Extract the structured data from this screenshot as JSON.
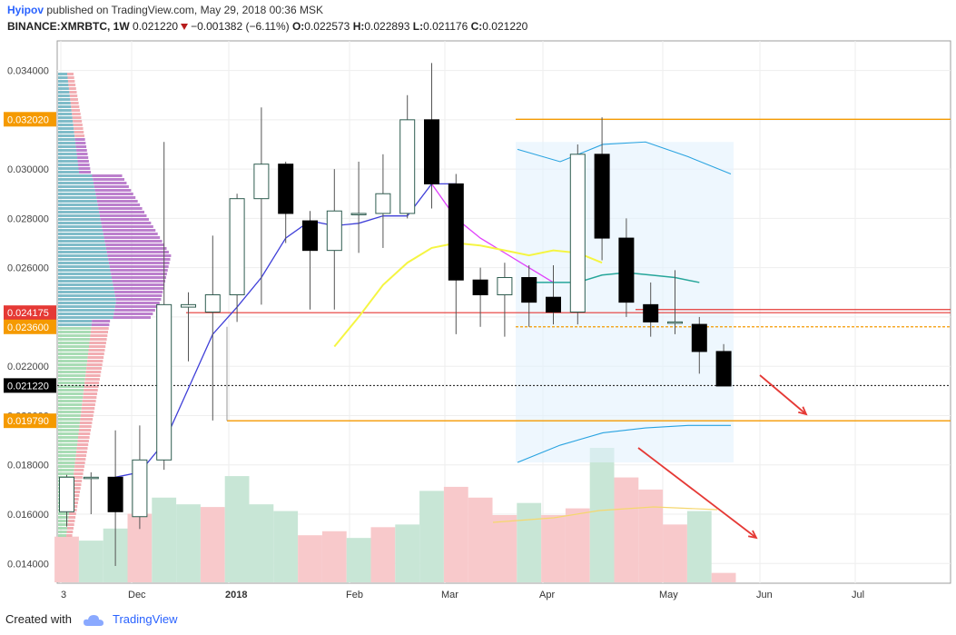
{
  "header": {
    "user": "Hyipov",
    "published_text": "published on TradingView.com, May 29, 2018 00:36 MSK",
    "symbol": "BINANCE:XMRBTC, 1W",
    "last": "0.021220",
    "change": "−0.001382 (−6.11%)",
    "o_label": "O:",
    "o_val": "0.022573",
    "h_label": "H:",
    "h_val": "0.022893",
    "l_label": "L:",
    "l_val": "0.021176",
    "c_label": "C:",
    "c_val": "0.021220"
  },
  "footer": {
    "created_with": "Created with",
    "brand": "TradingView",
    "logo_icon": "cloud-logo-icon"
  },
  "colors": {
    "up_border": "#2f5d50",
    "down_body": "#000000",
    "vol_up": "#c8e6d6",
    "vol_down": "#f8c9cb",
    "orange": "#f59a00",
    "red_line": "#e53935",
    "ema_blue": "#3f3fd8",
    "ema_pink": "#e040fb",
    "sma_yellow": "#f5f542",
    "teal": "#26a69a",
    "band": "#29a3e0"
  },
  "chart_data": {
    "type": "candlestick",
    "title": "BINANCE:XMRBTC, 1W",
    "ylim": [
      0.0132,
      0.0352
    ],
    "y_ticks": [
      "0.034000",
      "0.032000",
      "0.030000",
      "0.028000",
      "0.026000",
      "0.024000",
      "0.022000",
      "0.020000",
      "0.018000",
      "0.016000",
      "0.014000"
    ],
    "x_tick_labels": [
      "3",
      "Dec",
      "2018",
      "Feb",
      "Mar",
      "Apr",
      "May",
      "Jun",
      "Jul"
    ],
    "price_labels": [
      {
        "text": "0.032020",
        "value": 0.03202,
        "color": "#f59a00"
      },
      {
        "text": "0.024175",
        "value": 0.024175,
        "color": "#e53935"
      },
      {
        "text": "0.023600",
        "value": 0.0236,
        "color": "#f59a00"
      },
      {
        "text": "0.021220",
        "value": 0.02122,
        "color": "#000000"
      },
      {
        "text": "0.019790",
        "value": 0.01979,
        "color": "#f59a00"
      }
    ],
    "candles": [
      {
        "o": 0.0161,
        "h": 0.0176,
        "l": 0.0155,
        "c": 0.0175
      },
      {
        "o": 0.0175,
        "h": 0.0177,
        "l": 0.016,
        "c": 0.0175
      },
      {
        "o": 0.0175,
        "h": 0.0194,
        "l": 0.0139,
        "c": 0.0161
      },
      {
        "o": 0.0159,
        "h": 0.0196,
        "l": 0.0154,
        "c": 0.0182
      },
      {
        "o": 0.0182,
        "h": 0.0311,
        "l": 0.0178,
        "c": 0.0245
      },
      {
        "o": 0.0244,
        "h": 0.025,
        "l": 0.0222,
        "c": 0.0245
      },
      {
        "o": 0.0242,
        "h": 0.0273,
        "l": 0.0198,
        "c": 0.0249
      },
      {
        "o": 0.0249,
        "h": 0.029,
        "l": 0.0238,
        "c": 0.0288
      },
      {
        "o": 0.0288,
        "h": 0.0325,
        "l": 0.0245,
        "c": 0.0302
      },
      {
        "o": 0.0302,
        "h": 0.0303,
        "l": 0.027,
        "c": 0.0282
      },
      {
        "o": 0.0279,
        "h": 0.0283,
        "l": 0.0243,
        "c": 0.0267
      },
      {
        "o": 0.0267,
        "h": 0.03,
        "l": 0.0243,
        "c": 0.0283
      },
      {
        "o": 0.0282,
        "h": 0.0303,
        "l": 0.0266,
        "c": 0.0282
      },
      {
        "o": 0.0282,
        "h": 0.0306,
        "l": 0.0268,
        "c": 0.029
      },
      {
        "o": 0.0282,
        "h": 0.033,
        "l": 0.028,
        "c": 0.032
      },
      {
        "o": 0.032,
        "h": 0.0343,
        "l": 0.0284,
        "c": 0.0294
      },
      {
        "o": 0.0294,
        "h": 0.0298,
        "l": 0.0233,
        "c": 0.0255
      },
      {
        "o": 0.0255,
        "h": 0.026,
        "l": 0.0236,
        "c": 0.0249
      },
      {
        "o": 0.0249,
        "h": 0.0262,
        "l": 0.0232,
        "c": 0.0256
      },
      {
        "o": 0.0256,
        "h": 0.0261,
        "l": 0.0236,
        "c": 0.0246
      },
      {
        "o": 0.0248,
        "h": 0.0261,
        "l": 0.0237,
        "c": 0.0242
      },
      {
        "o": 0.0242,
        "h": 0.031,
        "l": 0.0237,
        "c": 0.0306
      },
      {
        "o": 0.0306,
        "h": 0.0321,
        "l": 0.0263,
        "c": 0.0272
      },
      {
        "o": 0.0272,
        "h": 0.028,
        "l": 0.024,
        "c": 0.0246
      },
      {
        "o": 0.0245,
        "h": 0.0254,
        "l": 0.0232,
        "c": 0.0238
      },
      {
        "o": 0.0238,
        "h": 0.0259,
        "l": 0.0233,
        "c": 0.0238
      },
      {
        "o": 0.0237,
        "h": 0.024,
        "l": 0.0217,
        "c": 0.0226
      },
      {
        "o": 0.0226,
        "h": 0.0229,
        "l": 0.0212,
        "c": 0.0212
      }
    ],
    "volume_relative": [
      0.34,
      0.31,
      0.4,
      0.51,
      0.63,
      0.58,
      0.56,
      0.79,
      0.58,
      0.53,
      0.35,
      0.38,
      0.33,
      0.41,
      0.43,
      0.68,
      0.71,
      0.63,
      0.5,
      0.59,
      0.5,
      0.55,
      1.0,
      0.78,
      0.69,
      0.43,
      0.53,
      0.07
    ],
    "volume_up": [
      false,
      true,
      true,
      false,
      true,
      true,
      false,
      true,
      true,
      true,
      false,
      false,
      true,
      false,
      true,
      true,
      false,
      false,
      false,
      true,
      false,
      false,
      true,
      false,
      false,
      false,
      true,
      false
    ],
    "overlays": {
      "ema_fast": [
        0.0175,
        0.0177,
        0.0189,
        0.0211,
        0.0233,
        0.0244,
        0.0256,
        0.0272,
        0.0279,
        0.0277,
        0.0278,
        0.0281,
        0.0281,
        0.0294,
        0.0294
      ],
      "ema_slow_pink": [
        0.0294,
        0.028,
        0.0272,
        0.0266,
        0.026,
        0.0254
      ],
      "sma_yellow": [
        0.0228,
        0.024,
        0.0253,
        0.0262,
        0.0268,
        0.027,
        0.0269,
        0.0267,
        0.0265,
        0.0267,
        0.0266,
        0.0262
      ],
      "teal_line": [
        0.0254,
        0.0254,
        0.0254,
        0.0257,
        0.0258,
        0.0257,
        0.0256,
        0.0254
      ],
      "band_upper": [
        0.0308,
        0.0303,
        0.031,
        0.0311,
        0.0305,
        0.0298
      ],
      "band_lower": [
        0.0181,
        0.0188,
        0.0193,
        0.0195,
        0.0196,
        0.0196
      ]
    },
    "grid": true
  }
}
